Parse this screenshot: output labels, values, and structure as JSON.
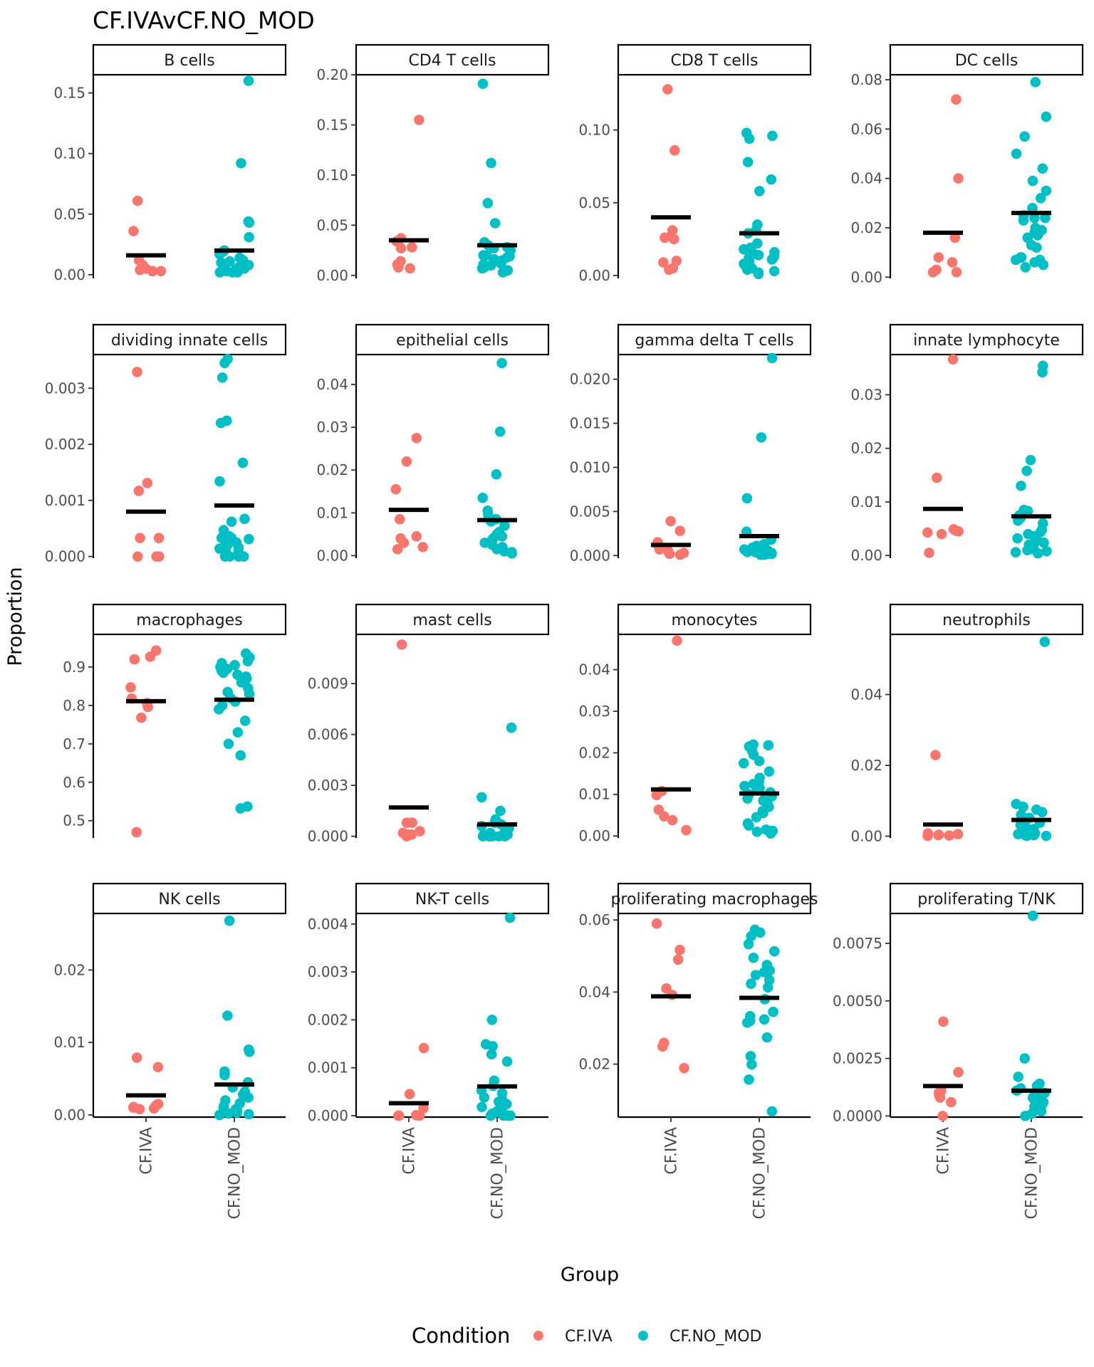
{
  "chart_data": {
    "type": "scatter",
    "title": "CF.IVAvCF.NO_MOD",
    "xlabel": "Group",
    "ylabel": "Proportion",
    "groups": [
      "CF.IVA",
      "CF.NO_MOD"
    ],
    "legend": {
      "title": "Condition",
      "placement": "bottom",
      "entries": [
        {
          "label": "CF.IVA",
          "color": "#F8766D"
        },
        {
          "label": "CF.NO_MOD",
          "color": "#00BFC4"
        }
      ]
    },
    "mean_bar_color": "#000000",
    "panels": [
      {
        "name": "B cells",
        "ylim": [
          -0.003,
          0.165
        ],
        "ticks": [
          0,
          0.05,
          0.1,
          0.15
        ],
        "tick_labels": [
          "0.00",
          "0.05",
          "0.10",
          "0.15"
        ],
        "cf_iva": [
          0.061,
          0.036,
          0.012,
          0.008,
          0.005,
          0.004,
          0.003,
          0.003
        ],
        "cf_no_mod": [
          0.16,
          0.092,
          0.044,
          0.043,
          0.031,
          0.02,
          0.019,
          0.017,
          0.014,
          0.012,
          0.011,
          0.01,
          0.008,
          0.006,
          0.005,
          0.004,
          0.004,
          0.003,
          0.003,
          0.002,
          0.002,
          0.002
        ],
        "mean": [
          0.016,
          0.02
        ]
      },
      {
        "name": "CD4 T cells",
        "ylim": [
          -0.003,
          0.2
        ],
        "ticks": [
          0,
          0.05,
          0.1,
          0.15,
          0.2
        ],
        "tick_labels": [
          "0.00",
          "0.05",
          "0.10",
          "0.15",
          "0.20"
        ],
        "cf_iva": [
          0.155,
          0.037,
          0.034,
          0.028,
          0.027,
          0.014,
          0.011,
          0.008,
          0.007
        ],
        "cf_no_mod": [
          0.191,
          0.112,
          0.072,
          0.052,
          0.033,
          0.03,
          0.028,
          0.027,
          0.025,
          0.02,
          0.02,
          0.019,
          0.018,
          0.016,
          0.015,
          0.013,
          0.012,
          0.011,
          0.01,
          0.008,
          0.007,
          0.005,
          0.004,
          0.003
        ],
        "mean": [
          0.035,
          0.03
        ]
      },
      {
        "name": "CD8 T cells",
        "ylim": [
          -0.002,
          0.138
        ],
        "ticks": [
          0,
          0.05,
          0.1
        ],
        "tick_labels": [
          "0.00",
          "0.05",
          "0.10"
        ],
        "cf_iva": [
          0.128,
          0.086,
          0.031,
          0.027,
          0.026,
          0.025,
          0.01,
          0.009,
          0.005,
          0.004
        ],
        "cf_no_mod": [
          0.098,
          0.096,
          0.094,
          0.078,
          0.066,
          0.058,
          0.035,
          0.031,
          0.029,
          0.022,
          0.019,
          0.018,
          0.016,
          0.015,
          0.014,
          0.013,
          0.012,
          0.011,
          0.01,
          0.009,
          0.008,
          0.007,
          0.005,
          0.004,
          0.003,
          0.002,
          0.001
        ],
        "mean": [
          0.04,
          0.029
        ]
      },
      {
        "name": "DC cells",
        "ylim": [
          -0.0005,
          0.082
        ],
        "ticks": [
          0,
          0.02,
          0.04,
          0.06,
          0.08
        ],
        "tick_labels": [
          "0.00",
          "0.02",
          "0.04",
          "0.06",
          "0.08"
        ],
        "cf_iva": [
          0.072,
          0.04,
          0.016,
          0.008,
          0.006,
          0.003,
          0.002,
          0.002
        ],
        "cf_no_mod": [
          0.079,
          0.065,
          0.057,
          0.05,
          0.044,
          0.039,
          0.035,
          0.032,
          0.028,
          0.025,
          0.024,
          0.024,
          0.023,
          0.02,
          0.019,
          0.018,
          0.017,
          0.016,
          0.013,
          0.012,
          0.008,
          0.008,
          0.007,
          0.007,
          0.006,
          0.005,
          0.004
        ],
        "mean": [
          0.018,
          0.026
        ]
      },
      {
        "name": "dividing innate cells",
        "ylim": [
          -3e-05,
          0.0036
        ],
        "ticks": [
          0,
          0.001,
          0.002,
          0.003
        ],
        "tick_labels": [
          "0.000",
          "0.001",
          "0.002",
          "0.003"
        ],
        "cf_iva": [
          0.00329,
          0.00131,
          0.00117,
          0.00033,
          0.00033,
          0.0,
          0.0,
          0.0
        ],
        "cf_no_mod": [
          0.00352,
          0.00345,
          0.00319,
          0.00242,
          0.00238,
          0.00167,
          0.00134,
          0.00067,
          0.00062,
          0.00047,
          0.00036,
          0.00034,
          0.00033,
          0.00033,
          0.00031,
          0.00027,
          0.00025,
          0.0002,
          0.00016,
          0.00014,
          0.0001,
          8e-05,
          0.0,
          0.0,
          0.0,
          0.0
        ],
        "mean": [
          0.0008,
          0.00091
        ]
      },
      {
        "name": "epithelial cells",
        "ylim": [
          -0.0006,
          0.047
        ],
        "ticks": [
          0,
          0.01,
          0.02,
          0.03,
          0.04
        ],
        "tick_labels": [
          "0.00",
          "0.01",
          "0.02",
          "0.03",
          "0.04"
        ],
        "cf_iva": [
          0.0275,
          0.022,
          0.0155,
          0.0085,
          0.0045,
          0.004,
          0.003,
          0.002,
          0.0015
        ],
        "cf_no_mod": [
          0.045,
          0.029,
          0.019,
          0.0135,
          0.0105,
          0.0095,
          0.0085,
          0.008,
          0.007,
          0.0055,
          0.005,
          0.0045,
          0.004,
          0.0035,
          0.003,
          0.0025,
          0.002,
          0.0015,
          0.001,
          0.0008,
          0.0005
        ],
        "mean": [
          0.0107,
          0.0083
        ]
      },
      {
        "name": "gamma delta T cells",
        "ylim": [
          -0.0003,
          0.0228
        ],
        "ticks": [
          0,
          0.005,
          0.01,
          0.015,
          0.02
        ],
        "tick_labels": [
          "0.000",
          "0.005",
          "0.010",
          "0.015",
          "0.020"
        ],
        "cf_iva": [
          0.0039,
          0.0028,
          0.0015,
          0.0012,
          0.0009,
          0.0007,
          0.0005,
          0.0003,
          0.0002,
          0.0001
        ],
        "cf_no_mod": [
          0.0224,
          0.0134,
          0.0065,
          0.0027,
          0.0018,
          0.0013,
          0.0011,
          0.0009,
          0.0008,
          0.0007,
          0.0006,
          0.0005,
          0.0005,
          0.0004,
          0.0004,
          0.0003,
          0.0003,
          0.0002,
          0.0002,
          0.0001,
          0.0001,
          0.0001
        ],
        "mean": [
          0.0012,
          0.0022
        ]
      },
      {
        "name": "innate lymphocyte",
        "ylim": [
          -0.0005,
          0.0375
        ],
        "ticks": [
          0,
          0.01,
          0.02,
          0.03
        ],
        "tick_labels": [
          "0.00",
          "0.01",
          "0.02",
          "0.03"
        ],
        "cf_iva": [
          0.0366,
          0.0145,
          0.0049,
          0.0046,
          0.0045,
          0.0043,
          0.004,
          0.0005
        ],
        "cf_no_mod": [
          0.0354,
          0.0342,
          0.0178,
          0.0158,
          0.013,
          0.0085,
          0.0083,
          0.008,
          0.0075,
          0.007,
          0.0065,
          0.006,
          0.0048,
          0.0044,
          0.004,
          0.0036,
          0.0032,
          0.0028,
          0.0024,
          0.002,
          0.0015,
          0.0012,
          0.001,
          0.0008,
          0.0006,
          0.0004
        ],
        "mean": [
          0.0087,
          0.0073
        ]
      },
      {
        "name": "macrophages",
        "ylim": [
          0.455,
          0.985
        ],
        "ticks": [
          0.5,
          0.6,
          0.7,
          0.8,
          0.9
        ],
        "tick_labels": [
          "0.5",
          "0.6",
          "0.7",
          "0.8",
          "0.9"
        ],
        "cf_iva": [
          0.943,
          0.927,
          0.92,
          0.847,
          0.818,
          0.806,
          0.796,
          0.768,
          0.47
        ],
        "cf_no_mod": [
          0.935,
          0.925,
          0.915,
          0.91,
          0.905,
          0.9,
          0.895,
          0.89,
          0.885,
          0.88,
          0.875,
          0.87,
          0.86,
          0.845,
          0.835,
          0.83,
          0.82,
          0.81,
          0.8,
          0.79,
          0.76,
          0.73,
          0.7,
          0.67,
          0.537,
          0.532
        ],
        "mean": [
          0.811,
          0.815
        ]
      },
      {
        "name": "mast cells",
        "ylim": [
          -0.0001,
          0.0119
        ],
        "ticks": [
          0,
          0.003,
          0.006,
          0.009
        ],
        "tick_labels": [
          "0.000",
          "0.003",
          "0.006",
          "0.009"
        ],
        "cf_iva": [
          0.0113,
          0.0008,
          0.0008,
          0.0003,
          0.0002,
          0.0001,
          0.0001,
          0.0
        ],
        "cf_no_mod": [
          0.0064,
          0.0023,
          0.0015,
          0.001,
          0.0008,
          0.0007,
          0.0006,
          0.0005,
          0.0004,
          0.0003,
          0.0002,
          0.0002,
          0.0001,
          0.0001,
          0.0,
          0.0,
          0.0,
          0.0,
          0.0,
          0.0
        ],
        "mean": [
          0.0017,
          0.0007
        ]
      },
      {
        "name": "monocytes",
        "ylim": [
          -0.0005,
          0.0485
        ],
        "ticks": [
          0,
          0.01,
          0.02,
          0.03,
          0.04
        ],
        "tick_labels": [
          "0.00",
          "0.01",
          "0.02",
          "0.03",
          "0.04"
        ],
        "cf_iva": [
          0.047,
          0.0108,
          0.0098,
          0.0063,
          0.0047,
          0.0038,
          0.0014
        ],
        "cf_no_mod": [
          0.022,
          0.0218,
          0.0215,
          0.0205,
          0.0195,
          0.018,
          0.0175,
          0.0155,
          0.014,
          0.013,
          0.0125,
          0.012,
          0.0115,
          0.011,
          0.0105,
          0.01,
          0.0095,
          0.009,
          0.0085,
          0.0075,
          0.007,
          0.006,
          0.0055,
          0.0045,
          0.003,
          0.0025,
          0.0015,
          0.0012,
          0.001,
          0.0006
        ],
        "mean": [
          0.0112,
          0.0102
        ]
      },
      {
        "name": "neutrophils",
        "ylim": [
          -0.0005,
          0.057
        ],
        "ticks": [
          0,
          0.02,
          0.04
        ],
        "tick_labels": [
          "0.00",
          "0.02",
          "0.04"
        ],
        "cf_iva": [
          0.0229,
          0.0008,
          0.0006,
          0.0004,
          0.0003,
          0.0002,
          0.0001
        ],
        "cf_no_mod": [
          0.0549,
          0.0091,
          0.0083,
          0.0075,
          0.0068,
          0.006,
          0.0052,
          0.0045,
          0.0038,
          0.0032,
          0.0026,
          0.002,
          0.0015,
          0.0012,
          0.001,
          0.0008,
          0.0006,
          0.0004,
          0.0003,
          0.0002,
          0.0001,
          0.0001
        ],
        "mean": [
          0.0033,
          0.0046
        ]
      },
      {
        "name": "NK cells",
        "ylim": [
          -0.0003,
          0.0278
        ],
        "ticks": [
          0,
          0.01,
          0.02
        ],
        "tick_labels": [
          "0.00",
          "0.01",
          "0.02"
        ],
        "cf_iva": [
          0.0079,
          0.0066,
          0.0015,
          0.0013,
          0.0011,
          0.001,
          0.0009,
          0.0008
        ],
        "cf_no_mod": [
          0.0268,
          0.0137,
          0.009,
          0.0087,
          0.006,
          0.0055,
          0.0045,
          0.0038,
          0.0032,
          0.0028,
          0.0024,
          0.002,
          0.0016,
          0.0012,
          0.001,
          0.0008,
          0.0006,
          0.0004,
          0.0003,
          0.0002,
          0.0001,
          0.0
        ],
        "mean": [
          0.0027,
          0.0042
        ]
      },
      {
        "name": "NK-T cells",
        "ylim": [
          -3e-05,
          0.00422
        ],
        "ticks": [
          0,
          0.001,
          0.002,
          0.003,
          0.004
        ],
        "tick_labels": [
          "0.000",
          "0.001",
          "0.002",
          "0.003",
          "0.004"
        ],
        "cf_iva": [
          0.00141,
          0.00045,
          0.00015,
          1e-05,
          0.0,
          0.0,
          0.0
        ],
        "cf_no_mod": [
          0.00413,
          0.002,
          0.00149,
          0.00145,
          0.00128,
          0.00113,
          0.00073,
          0.00062,
          0.00053,
          0.00047,
          0.00038,
          0.00033,
          0.00029,
          0.00024,
          0.00018,
          0.00013,
          0.0001,
          7e-05,
          4e-05,
          0.0,
          0.0,
          0.0,
          0.0,
          0.0
        ],
        "mean": [
          0.00026,
          0.00061
        ]
      },
      {
        "name": "proliferating macrophages",
        "ylim": [
          0.0053,
          0.0618
        ],
        "ticks": [
          0.02,
          0.04,
          0.06
        ],
        "tick_labels": [
          "0.02",
          "0.04",
          "0.06"
        ],
        "cf_iva": [
          0.059,
          0.0517,
          0.049,
          0.041,
          0.0392,
          0.0259,
          0.0249,
          0.0189
        ],
        "cf_no_mod": [
          0.0573,
          0.0565,
          0.0555,
          0.0533,
          0.0513,
          0.0495,
          0.0475,
          0.0465,
          0.046,
          0.0455,
          0.0447,
          0.0433,
          0.0423,
          0.0413,
          0.038,
          0.0345,
          0.0333,
          0.0324,
          0.032,
          0.0315,
          0.0274,
          0.0222,
          0.0199,
          0.0157,
          0.0069
        ],
        "mean": [
          0.0388,
          0.0384
        ]
      },
      {
        "name": "proliferating T/NK",
        "ylim": [
          -5e-05,
          0.0088
        ],
        "ticks": [
          0,
          0.0025,
          0.005,
          0.0075
        ],
        "tick_labels": [
          "0.0000",
          "0.0025",
          "0.0050",
          "0.0075"
        ],
        "cf_iva": [
          0.0041,
          0.0019,
          0.0011,
          0.001,
          0.0009,
          0.0008,
          0.0006,
          0.0
        ],
        "cf_no_mod": [
          0.0087,
          0.0025,
          0.0017,
          0.0014,
          0.0013,
          0.0012,
          0.0011,
          0.001,
          0.0009,
          0.0008,
          0.0007,
          0.0006,
          0.0005,
          0.0004,
          0.0003,
          0.0002,
          0.0001,
          0.0
        ],
        "mean": [
          0.0013,
          0.0011
        ]
      }
    ]
  }
}
